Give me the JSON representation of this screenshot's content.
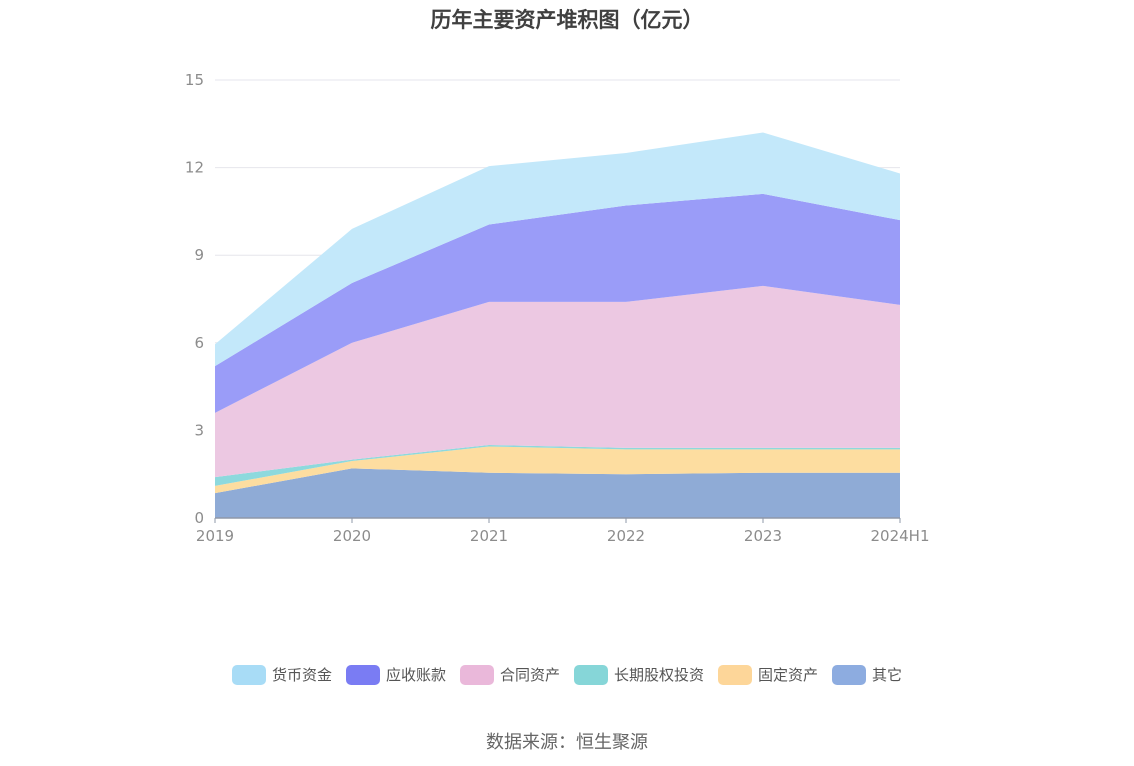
{
  "chart_data": {
    "type": "area",
    "stacked": true,
    "title": "历年主要资产堆积图（亿元）",
    "categories": [
      "2019",
      "2020",
      "2021",
      "2022",
      "2023",
      "2024H1"
    ],
    "ylim": [
      0,
      15
    ],
    "yticks": [
      0,
      3,
      6,
      9,
      12,
      15
    ],
    "grid": true,
    "legend_position": "bottom",
    "series": [
      {
        "name": "其它",
        "color": "#8fabd6",
        "values": [
          0.85,
          1.7,
          1.55,
          1.5,
          1.55,
          1.55
        ]
      },
      {
        "name": "固定资产",
        "color": "#fddda0",
        "values": [
          0.25,
          0.25,
          0.9,
          0.85,
          0.8,
          0.8
        ]
      },
      {
        "name": "长期股权投资",
        "color": "#8dd9dd",
        "values": [
          0.3,
          0.05,
          0.05,
          0.05,
          0.05,
          0.05
        ]
      },
      {
        "name": "合同资产",
        "color": "#ecc8e2",
        "values": [
          2.2,
          4.0,
          4.9,
          5.0,
          5.55,
          4.9
        ]
      },
      {
        "name": "应收账款",
        "color": "#9a9cf8",
        "values": [
          1.6,
          2.05,
          2.65,
          3.3,
          3.15,
          2.9
        ]
      },
      {
        "name": "货币资金",
        "color": "#c3e8fa",
        "values": [
          0.75,
          1.85,
          2.0,
          1.8,
          2.1,
          1.6
        ]
      }
    ]
  },
  "legend_items": [
    {
      "label": "货币资金",
      "color": "#a8dcf6"
    },
    {
      "label": "应收账款",
      "color": "#7a7cf3"
    },
    {
      "label": "合同资产",
      "color": "#eab8da"
    },
    {
      "label": "长期股权投资",
      "color": "#86d6d8"
    },
    {
      "label": "固定资产",
      "color": "#fdd699"
    },
    {
      "label": "其它",
      "color": "#8dace0"
    }
  ],
  "source": "数据来源：恒生聚源"
}
